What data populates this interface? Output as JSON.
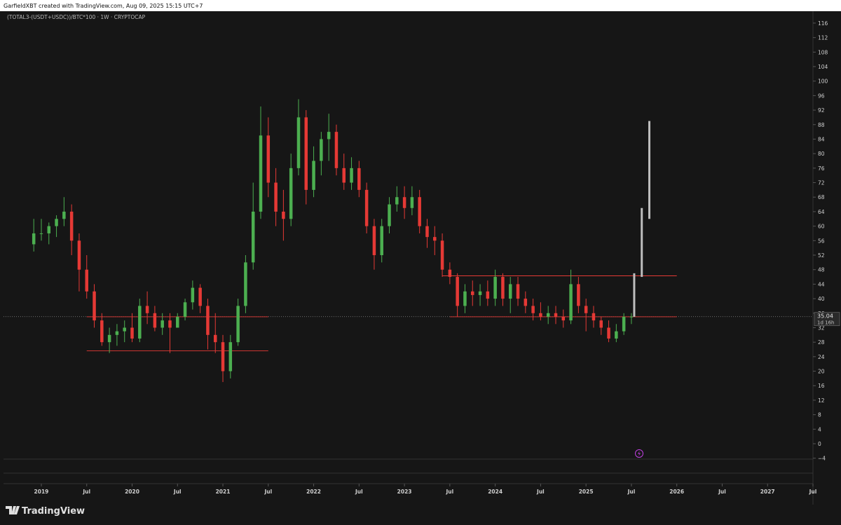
{
  "chart_data": {
    "type": "candlestick",
    "header": "GarfieldXBT created with TradingView.com, Aug 09, 2025 15:15 UTC+7",
    "title": "(TOTAL3-(USDT+USDC))/BTC*100 · 1W · CRYPTOCAP",
    "brand": "TradingView",
    "up_color": "#4caf50",
    "down_color": "#e53935",
    "x": [
      "2018-12",
      "2019-01",
      "2019-02",
      "2019-03",
      "2019-04",
      "2019-05",
      "2019-06",
      "2019-07",
      "2019-08",
      "2019-09",
      "2019-10",
      "2019-11",
      "2019-12",
      "2020-01",
      "2020-02",
      "2020-03",
      "2020-04",
      "2020-05",
      "2020-06",
      "2020-07",
      "2020-08",
      "2020-09",
      "2020-10",
      "2020-11",
      "2020-12",
      "2021-01",
      "2021-02",
      "2021-03",
      "2021-04",
      "2021-05",
      "2021-06",
      "2021-07",
      "2021-08",
      "2021-09",
      "2021-10",
      "2021-11",
      "2021-12",
      "2022-01",
      "2022-02",
      "2022-03",
      "2022-04",
      "2022-05",
      "2022-06",
      "2022-07",
      "2022-08",
      "2022-09",
      "2022-10",
      "2022-11",
      "2022-12",
      "2023-01",
      "2023-02",
      "2023-03",
      "2023-04",
      "2023-05",
      "2023-06",
      "2023-07",
      "2023-08",
      "2023-09",
      "2023-10",
      "2023-11",
      "2023-12",
      "2024-01",
      "2024-02",
      "2024-03",
      "2024-04",
      "2024-05",
      "2024-06",
      "2024-07",
      "2024-08",
      "2024-09",
      "2024-10",
      "2024-11",
      "2024-12",
      "2025-01",
      "2025-02",
      "2025-03",
      "2025-04",
      "2025-05",
      "2025-06",
      "2025-07"
    ],
    "open": [
      55,
      58,
      58,
      60,
      62,
      64,
      56,
      48,
      42,
      34,
      28,
      30,
      31,
      32,
      29,
      38,
      36,
      32,
      34,
      32,
      35,
      39,
      43,
      38,
      30,
      28,
      20,
      28,
      38,
      50,
      64,
      85,
      72,
      64,
      62,
      76,
      90,
      70,
      78,
      84,
      86,
      76,
      72,
      76,
      70,
      60,
      52,
      60,
      66,
      68,
      65,
      68,
      60,
      57,
      56,
      48,
      46,
      38,
      42,
      41,
      42,
      40,
      46,
      40,
      44,
      40,
      38,
      36,
      35,
      36,
      35,
      34,
      44,
      38,
      36,
      34,
      32,
      29,
      31,
      35
    ],
    "high": [
      62,
      62,
      61,
      63,
      68,
      66,
      58,
      52,
      44,
      36,
      32,
      33,
      34,
      36,
      40,
      42,
      38,
      36,
      36,
      36,
      40,
      45,
      44,
      40,
      36,
      30,
      30,
      40,
      52,
      72,
      93,
      90,
      76,
      70,
      80,
      95,
      92,
      82,
      86,
      91,
      88,
      80,
      79,
      78,
      72,
      62,
      62,
      68,
      71,
      71,
      71,
      70,
      62,
      60,
      58,
      50,
      47,
      44,
      45,
      44,
      45,
      48,
      47,
      46,
      46,
      42,
      40,
      39,
      38,
      38,
      37,
      48,
      46,
      40,
      38,
      35,
      34,
      33,
      36,
      36
    ],
    "low": [
      53,
      56,
      55,
      57,
      60,
      52,
      42,
      40,
      32,
      27,
      25,
      27,
      28,
      28,
      28,
      33,
      31,
      30,
      25,
      32,
      34,
      37,
      36,
      26,
      25,
      17,
      18,
      27,
      36,
      48,
      62,
      68,
      60,
      56,
      60,
      74,
      66,
      68,
      74,
      78,
      74,
      70,
      70,
      68,
      58,
      48,
      50,
      58,
      64,
      62,
      63,
      58,
      54,
      52,
      46,
      44,
      35,
      36,
      38,
      38,
      38,
      38,
      38,
      36,
      38,
      36,
      34,
      34,
      33,
      33,
      32,
      33,
      36,
      31,
      32,
      30,
      28,
      28,
      30,
      33
    ],
    "close": [
      58,
      58,
      60,
      62,
      64,
      56,
      48,
      42,
      34,
      28,
      30,
      31,
      32,
      29,
      38,
      36,
      32,
      34,
      32,
      35,
      39,
      43,
      38,
      30,
      28,
      20,
      28,
      38,
      50,
      64,
      85,
      72,
      64,
      62,
      76,
      90,
      70,
      78,
      84,
      86,
      76,
      72,
      76,
      70,
      60,
      52,
      60,
      66,
      68,
      65,
      68,
      60,
      57,
      56,
      48,
      46,
      38,
      42,
      41,
      42,
      40,
      46,
      40,
      44,
      40,
      38,
      36,
      35,
      36,
      35,
      34,
      44,
      38,
      36,
      34,
      32,
      29,
      31,
      35,
      35.04
    ],
    "projection": {
      "color": "#bdbdbd",
      "x": [
        "2025-07",
        "2025-08",
        "2025-09"
      ],
      "low": [
        35,
        46,
        62
      ],
      "high": [
        47,
        65,
        89
      ]
    },
    "levels": [
      {
        "value": 35,
        "from": "2019-07",
        "to": "2021-07"
      },
      {
        "value": 25.6,
        "from": "2019-07",
        "to": "2021-07"
      },
      {
        "value": 46.3,
        "from": "2023-06",
        "to": "2026-01"
      },
      {
        "value": 35,
        "from": "2023-07",
        "to": "2026-01"
      }
    ],
    "level_color": "#e53935",
    "last_price": 35.04,
    "countdown": "1d 16h",
    "xlim": [
      "2018-08",
      "2027-07"
    ],
    "xticks": [
      {
        "value": "2019-01",
        "label": "2019"
      },
      {
        "value": "2019-07",
        "label": "Jul"
      },
      {
        "value": "2020-01",
        "label": "2020"
      },
      {
        "value": "2020-07",
        "label": "Jul"
      },
      {
        "value": "2021-01",
        "label": "2021"
      },
      {
        "value": "2021-07",
        "label": "Jul"
      },
      {
        "value": "2022-01",
        "label": "2022"
      },
      {
        "value": "2022-07",
        "label": "Jul"
      },
      {
        "value": "2023-01",
        "label": "2023"
      },
      {
        "value": "2023-07",
        "label": "Jul"
      },
      {
        "value": "2024-01",
        "label": "2024"
      },
      {
        "value": "2024-07",
        "label": "Jul"
      },
      {
        "value": "2025-01",
        "label": "2025"
      },
      {
        "value": "2025-07",
        "label": "Jul"
      },
      {
        "value": "2026-01",
        "label": "2026"
      },
      {
        "value": "2026-07",
        "label": "Jul"
      },
      {
        "value": "2027-01",
        "label": "2027"
      },
      {
        "value": "2027-07",
        "label": "Jul"
      }
    ],
    "ylim": [
      -4.25,
      118.5
    ],
    "yticks": [
      {
        "value": -4,
        "label": "−4"
      },
      0,
      4,
      8,
      12,
      16,
      20,
      24,
      28,
      32,
      36,
      40,
      44,
      48,
      52,
      56,
      60,
      64,
      68,
      72,
      76,
      80,
      84,
      88,
      92,
      96,
      100,
      104,
      108,
      112,
      116
    ]
  }
}
